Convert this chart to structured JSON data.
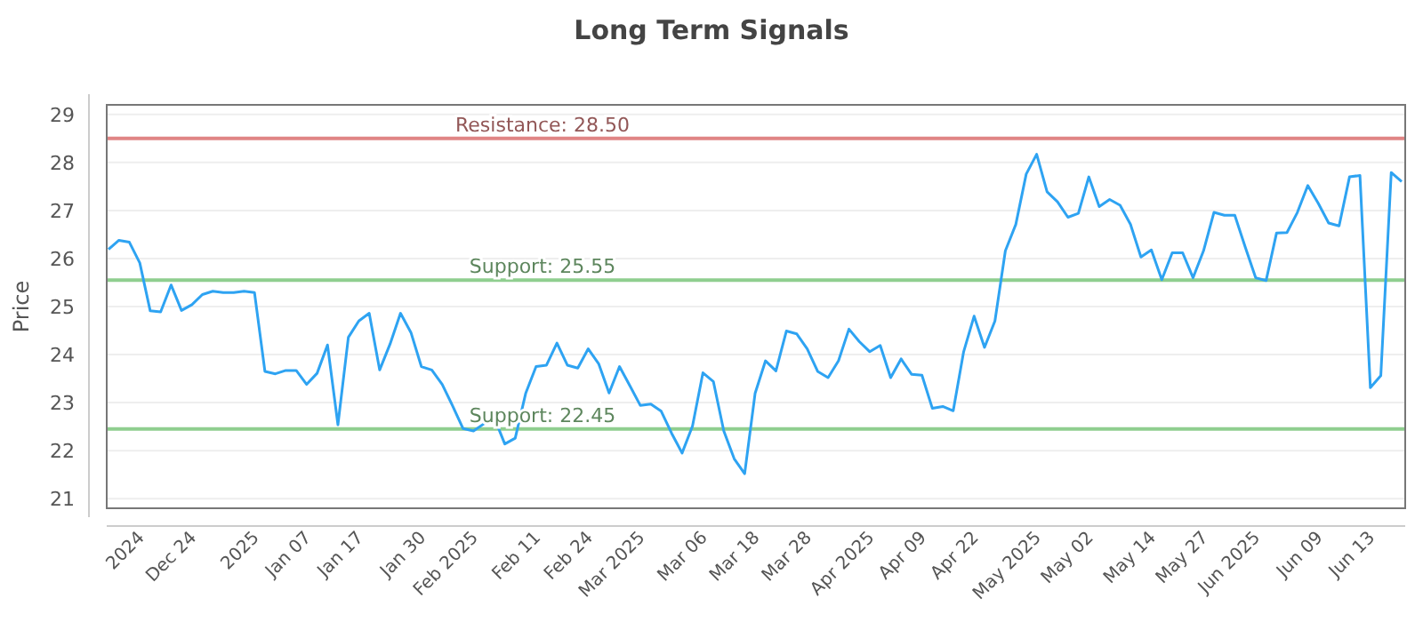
{
  "chart_data": {
    "type": "line",
    "title": "Long Term Signals",
    "ylabel": "Price",
    "categories": [
      null,
      null,
      null,
      "2024",
      null,
      null,
      null,
      null,
      "Dec 24",
      null,
      null,
      null,
      null,
      null,
      "2025",
      null,
      null,
      null,
      null,
      "Jan 07",
      null,
      null,
      null,
      null,
      "Jan 17",
      null,
      null,
      null,
      null,
      null,
      "Jan 30",
      null,
      null,
      null,
      null,
      "Feb 2025",
      null,
      null,
      null,
      null,
      null,
      "Feb 11",
      null,
      null,
      null,
      null,
      "Feb 24",
      null,
      null,
      null,
      null,
      "Mar 2025",
      null,
      null,
      null,
      null,
      null,
      "Mar 06",
      null,
      null,
      null,
      null,
      "Mar 18",
      null,
      null,
      null,
      null,
      "Mar 28",
      null,
      null,
      null,
      null,
      null,
      "Apr 2025",
      null,
      null,
      null,
      null,
      "Apr 09",
      null,
      null,
      null,
      null,
      "Apr 22",
      null,
      null,
      null,
      null,
      null,
      "May 2025",
      null,
      null,
      null,
      null,
      "May 02",
      null,
      null,
      null,
      null,
      null,
      "May 14",
      null,
      null,
      null,
      null,
      "May 27",
      null,
      null,
      null,
      null,
      "Jun 2025",
      null,
      null,
      null,
      null,
      null,
      "Jun 09",
      null,
      null,
      null,
      null,
      "Jun 13",
      null,
      null,
      null
    ],
    "series": [
      {
        "color": "#2ea3f2",
        "values": [
          26.19,
          26.38,
          26.34,
          25.91,
          24.91,
          24.89,
          25.45,
          24.92,
          25.04,
          25.25,
          25.32,
          25.29,
          25.29,
          25.32,
          25.29,
          23.65,
          23.6,
          23.67,
          23.67,
          23.38,
          23.61,
          24.2,
          22.54,
          24.36,
          24.7,
          24.86,
          23.68,
          24.22,
          24.86,
          24.46,
          23.75,
          23.68,
          23.38,
          22.93,
          22.46,
          22.41,
          22.56,
          22.68,
          22.14,
          22.26,
          23.19,
          23.75,
          23.78,
          24.24,
          23.78,
          23.72,
          24.12,
          23.81,
          23.2,
          23.75,
          23.35,
          22.94,
          22.97,
          22.82,
          22.36,
          21.95,
          22.51,
          23.62,
          23.44,
          22.41,
          21.83,
          21.52,
          23.19,
          23.87,
          23.66,
          24.49,
          24.43,
          24.12,
          23.65,
          23.52,
          23.87,
          24.53,
          24.27,
          24.06,
          24.19,
          23.52,
          23.91,
          23.59,
          23.57,
          22.88,
          22.92,
          22.83,
          24.06,
          24.8,
          24.15,
          24.7,
          26.16,
          26.71,
          27.76,
          28.17,
          27.39,
          27.18,
          26.86,
          26.94,
          27.7,
          27.08,
          27.23,
          27.11,
          26.71,
          26.03,
          26.18,
          25.56,
          26.12,
          26.12,
          25.6,
          26.16,
          26.96,
          26.9,
          26.9,
          26.24,
          25.6,
          25.54,
          26.53,
          26.54,
          26.96,
          27.52,
          27.15,
          26.74,
          26.68,
          27.7,
          27.73,
          23.31,
          23.56,
          27.79,
          27.6
        ]
      }
    ],
    "ylim": [
      20.8,
      29.2
    ],
    "yticks": [
      21,
      22,
      23,
      24,
      25,
      26,
      27,
      28,
      29
    ],
    "grid": "y",
    "legend": false,
    "marker": "none",
    "line_style": "solid",
    "ref_lines": [
      {
        "axis": "y",
        "value": 28.5,
        "label": "Resistance: 28.50",
        "color": "#e08585"
      },
      {
        "axis": "y",
        "value": 25.55,
        "label": "Support: 25.55",
        "color": "#8fce8f"
      },
      {
        "axis": "y",
        "value": 22.45,
        "label": "Support: 22.45",
        "color": "#8fce8f"
      }
    ]
  }
}
